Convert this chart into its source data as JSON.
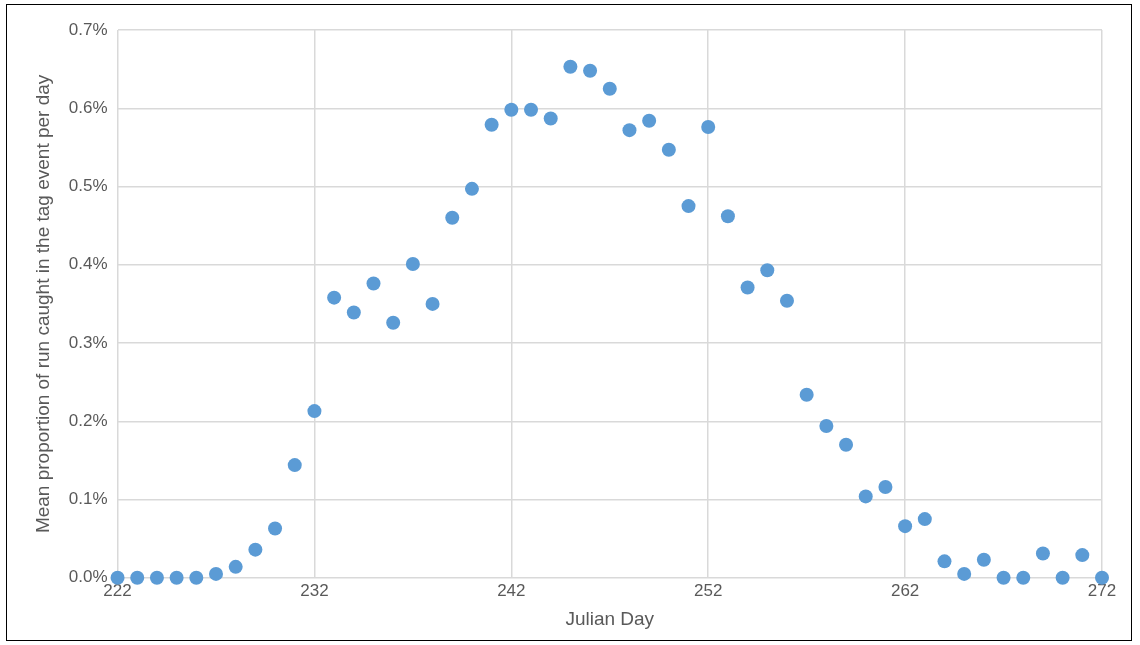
{
  "chart_data": {
    "type": "scatter",
    "xlabel": "Julian Day",
    "ylabel": "Mean proportion of run caught in the tag event per day",
    "x": [
      222,
      223,
      224,
      225,
      226,
      227,
      228,
      229,
      230,
      231,
      232,
      233,
      234,
      235,
      236,
      237,
      238,
      239,
      240,
      241,
      242,
      243,
      244,
      245,
      246,
      247,
      248,
      249,
      250,
      251,
      252,
      253,
      254,
      255,
      256,
      257,
      258,
      259,
      260,
      261,
      262,
      263,
      264,
      265,
      266,
      267,
      268,
      269,
      270,
      271,
      272
    ],
    "series": [
      {
        "color": "#5b9bd5",
        "values": [
          0,
          0,
          0,
          0,
          0,
          0.005,
          0.014,
          0.036,
          0.063,
          0.144,
          0.213,
          0.358,
          0.339,
          0.376,
          0.326,
          0.401,
          0.35,
          0.46,
          0.497,
          0.579,
          0.598,
          0.598,
          0.587,
          0.653,
          0.648,
          0.625,
          0.572,
          0.584,
          0.547,
          0.475,
          0.576,
          0.462,
          0.371,
          0.393,
          0.354,
          0.234,
          0.194,
          0.17,
          0.104,
          0.116,
          0.066,
          0.075,
          0.021,
          0.005,
          0.023,
          0,
          0,
          0.031,
          0,
          0.029,
          0
        ]
      }
    ],
    "xlim": [
      222,
      272
    ],
    "xticks": [
      222,
      232,
      242,
      252,
      262,
      272
    ],
    "ylim": [
      0,
      0.7
    ],
    "yticks": [
      {
        "value": 0,
        "label": "0.0%"
      },
      {
        "value": 0.1,
        "label": "0.1%"
      },
      {
        "value": 0.2,
        "label": "0.2%"
      },
      {
        "value": 0.3,
        "label": "0.3%"
      },
      {
        "value": 0.4,
        "label": "0.4%"
      },
      {
        "value": 0.5,
        "label": "0.5%"
      },
      {
        "value": 0.6,
        "label": "0.6%"
      },
      {
        "value": 0.7,
        "label": "0.7%"
      }
    ],
    "grid": true,
    "marker": "circle"
  }
}
